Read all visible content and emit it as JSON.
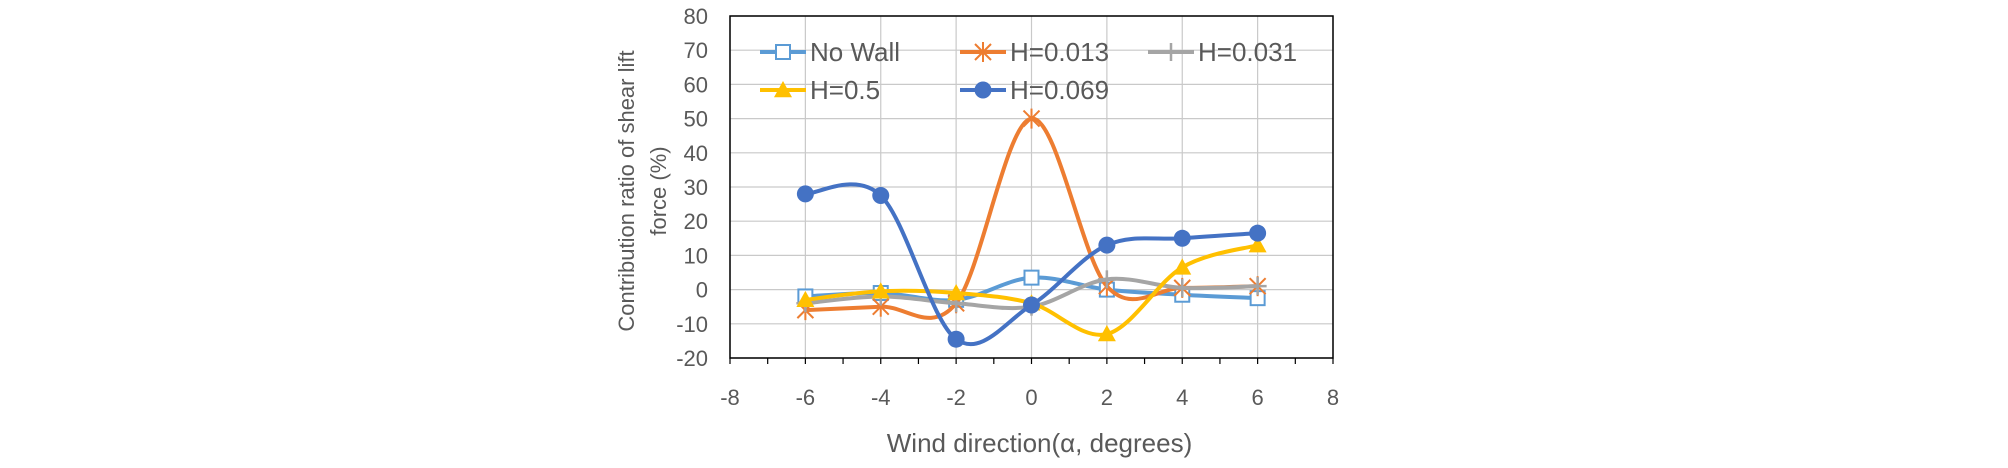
{
  "chart_data": {
    "type": "line",
    "title": "",
    "xlabel": "Wind direction(α, degrees)",
    "ylabel_lines": [
      "Contribution ratio of shear lift",
      "force (%)"
    ],
    "xlim": [
      -8,
      8
    ],
    "ylim": [
      -20,
      80
    ],
    "x_ticks": [
      "-8",
      "-6",
      "-4",
      "-2",
      "0",
      "2",
      "4",
      "6",
      "8"
    ],
    "y_ticks": [
      "-20",
      "-10",
      "0",
      "10",
      "20",
      "30",
      "40",
      "50",
      "60",
      "70",
      "80"
    ],
    "grid": true,
    "legend_position": "top-inside",
    "x": [
      -6,
      -4,
      -2,
      0,
      2,
      4,
      6
    ],
    "series": [
      {
        "name": "No Wall",
        "color": "#5B9BD5",
        "marker": "square-open",
        "values": [
          -2,
          -1,
          -3,
          3.5,
          0,
          -1.5,
          -2.5
        ]
      },
      {
        "name": "H=0.013",
        "color": "#ED7D31",
        "marker": "asterisk",
        "values": [
          -6,
          -5,
          -4,
          50,
          1,
          0.5,
          1
        ]
      },
      {
        "name": "H=0.031",
        "color": "#A5A5A5",
        "marker": "plus",
        "values": [
          -4,
          -2,
          -4,
          -5,
          3,
          0.5,
          1
        ]
      },
      {
        "name": "H=0.5",
        "color": "#FFC000",
        "marker": "triangle",
        "values": [
          -3,
          -0.5,
          -1,
          -4,
          -13,
          6.5,
          13
        ]
      },
      {
        "name": "H=0.069",
        "color": "#4472C4",
        "marker": "circle",
        "values": [
          28,
          27.5,
          -14.5,
          -4.5,
          13,
          15,
          16.5
        ]
      }
    ]
  }
}
